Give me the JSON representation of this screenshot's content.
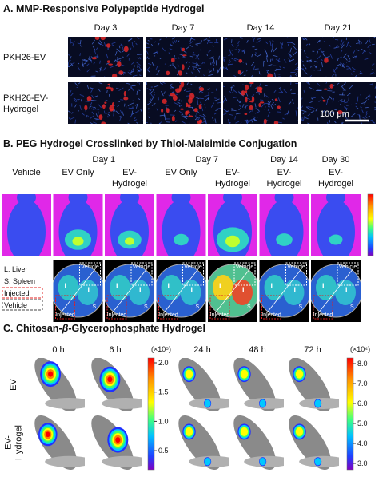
{
  "panel_a": {
    "title": "A. MMP-Responsive Polypeptide Hydrogel",
    "columns": [
      "Day 3",
      "Day 7",
      "Day 14",
      "Day 21"
    ],
    "rows": [
      [
        "PKH26-EV"
      ],
      [
        "PKH26-EV-",
        "Hydrogel"
      ]
    ],
    "scale_bar": "100 μm"
  },
  "panel_b": {
    "title": "B. PEG Hydrogel Crosslinked by Thiol-Maleimide Conjugation",
    "days": [
      "Day 1",
      "Day 7",
      "Day 14",
      "Day 30"
    ],
    "columns": [
      [
        "Vehicle"
      ],
      [
        "EV Only"
      ],
      [
        "EV-",
        "Hydrogel"
      ],
      [
        "EV Only"
      ],
      [
        "EV-",
        "Hydrogel"
      ],
      [
        "EV-",
        "Hydrogel"
      ],
      [
        "EV-",
        "Hydrogel"
      ]
    ],
    "legend": [
      "L: Liver",
      "S: Spleen",
      "Injected",
      "Vehicle"
    ],
    "organ_labels": {
      "liver": "L",
      "spleen": "S",
      "vehicle": "Vehicle",
      "injected": "Injected"
    }
  },
  "panel_c": {
    "title": [
      "C. Chitosan-",
      "β",
      "-Glycerophosphate Hydrogel"
    ],
    "columns": [
      "0 h",
      "6 h",
      "24 h",
      "48 h",
      "72 h"
    ],
    "rows": [
      [
        "EV"
      ],
      [
        "EV-",
        "Hydrogel"
      ]
    ],
    "scale_left": {
      "unit": "(×10⁵)",
      "ticks": [
        "2.0",
        "1.5",
        "1.0",
        "0.5"
      ]
    },
    "scale_right": {
      "unit": "(×10⁴)",
      "ticks": [
        "8.0",
        "7.0",
        "6.0",
        "5.0",
        "4.0",
        "3.0"
      ]
    }
  }
}
